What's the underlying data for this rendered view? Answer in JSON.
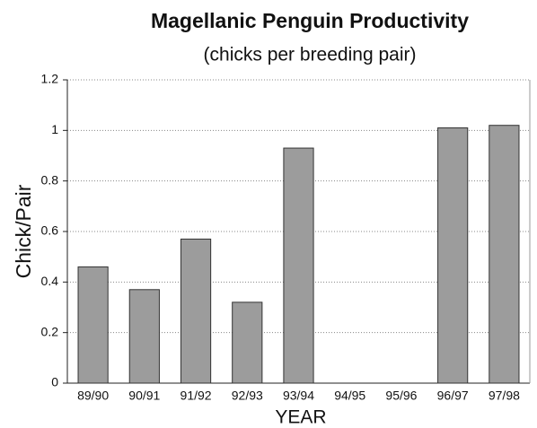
{
  "chart_data": {
    "type": "bar",
    "title": "Magellanic Penguin Productivity",
    "subtitle": "(chicks per breeding pair)",
    "y_label": "Chick/Pair",
    "x_label": "YEAR",
    "categories": [
      "89/90",
      "90/91",
      "91/92",
      "92/93",
      "93/94",
      "94/95",
      "95/96",
      "96/97",
      "97/98"
    ],
    "values": [
      0.46,
      0.37,
      0.57,
      0.32,
      0.93,
      0,
      0,
      1.01,
      1.02
    ],
    "color": "#9c9c9c",
    "ylim": [
      0,
      1.2
    ],
    "yticks": [
      0,
      0.2,
      0.4,
      0.6,
      0.8,
      1,
      1.2
    ],
    "grid": true
  }
}
